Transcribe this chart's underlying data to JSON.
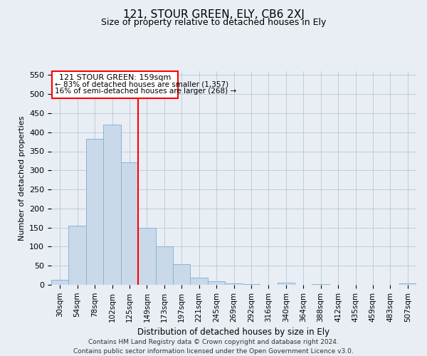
{
  "title": "121, STOUR GREEN, ELY, CB6 2XJ",
  "subtitle": "Size of property relative to detached houses in Ely",
  "xlabel": "Distribution of detached houses by size in Ely",
  "ylabel": "Number of detached properties",
  "bar_labels": [
    "30sqm",
    "54sqm",
    "78sqm",
    "102sqm",
    "125sqm",
    "149sqm",
    "173sqm",
    "197sqm",
    "221sqm",
    "245sqm",
    "269sqm",
    "292sqm",
    "316sqm",
    "340sqm",
    "364sqm",
    "388sqm",
    "412sqm",
    "435sqm",
    "459sqm",
    "483sqm",
    "507sqm"
  ],
  "bar_values": [
    13,
    155,
    383,
    420,
    322,
    150,
    100,
    55,
    18,
    10,
    4,
    1,
    0,
    5,
    0,
    2,
    0,
    0,
    0,
    0,
    3
  ],
  "bar_color": "#c9d9ea",
  "bar_edge_color": "#8ab4d4",
  "ylim": [
    0,
    560
  ],
  "yticks": [
    0,
    50,
    100,
    150,
    200,
    250,
    300,
    350,
    400,
    450,
    500,
    550
  ],
  "red_line_index": 4.5,
  "annotation_title": "121 STOUR GREEN: 159sqm",
  "annotation_line1": "← 83% of detached houses are smaller (1,357)",
  "annotation_line2": "16% of semi-detached houses are larger (268) →",
  "footer_line1": "Contains HM Land Registry data © Crown copyright and database right 2024.",
  "footer_line2": "Contains public sector information licensed under the Open Government Licence v3.0.",
  "background_color": "#e8eef4",
  "plot_background": "#e8eef4",
  "grid_color": "#b8c8d8"
}
